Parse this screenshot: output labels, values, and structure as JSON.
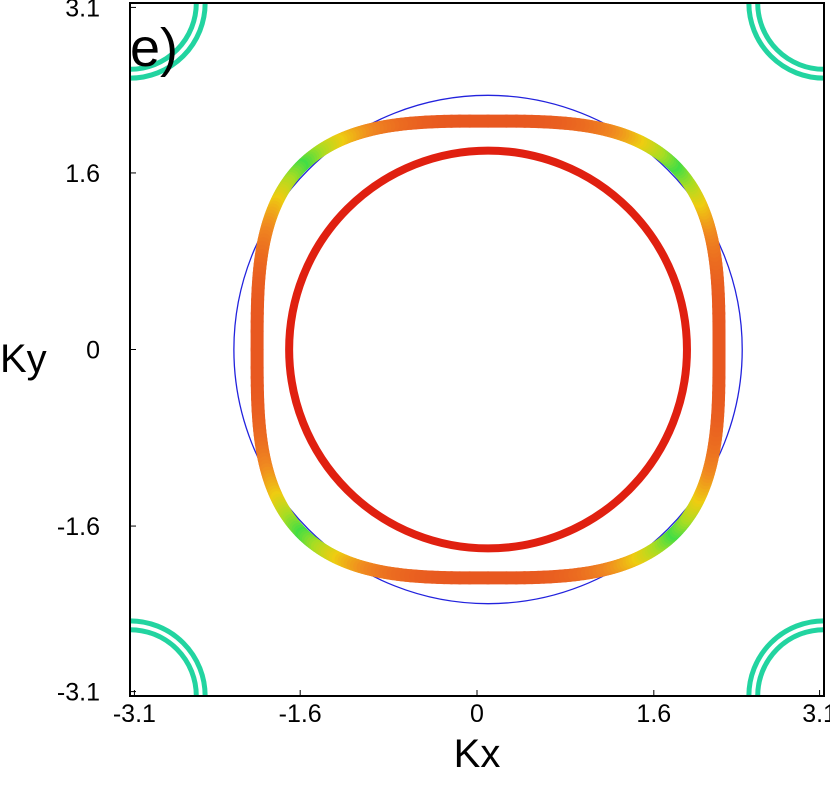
{
  "chart_data": {
    "type": "line",
    "title": "",
    "panel_label": "e)",
    "xlabel": "Kx",
    "ylabel": "Ky",
    "xlim": [
      -3.14,
      3.14
    ],
    "ylim": [
      -3.14,
      3.14
    ],
    "x_ticks": [
      "-3.1",
      "-1.6",
      "0",
      "1.6",
      "3.1"
    ],
    "y_ticks": [
      "3.1",
      "1.6",
      "0",
      "-1.6",
      "-3.1"
    ],
    "x_tick_values": [
      -3.1,
      -1.6,
      0,
      1.6,
      3.1
    ],
    "y_tick_values": [
      3.1,
      1.6,
      0,
      -1.6,
      -3.1
    ],
    "grid": false,
    "colors": {
      "outer_circle": "#2222dd",
      "inner_ring": "#e02010",
      "corner_pockets": "#22d4a0",
      "gradient_stops": [
        "#44dd44",
        "#aadd22",
        "#eecc11",
        "#f08820",
        "#e85820"
      ]
    },
    "series": [
      {
        "shape": "circle",
        "center": [
          0.1,
          0.0
        ],
        "radius": 2.3,
        "color": "#2222dd"
      },
      {
        "shape": "ring",
        "center": [
          0.1,
          0.0
        ],
        "radius": 1.8,
        "color": "#e02010"
      },
      {
        "shape": "superellipse",
        "center": [
          0.1,
          0.0
        ],
        "a": 2.09,
        "b": 2.07,
        "n": 3.2,
        "color": "gradient"
      },
      {
        "shape": "corner-pocket",
        "centers": [
          [
            -3.14,
            3.14
          ],
          [
            3.14,
            3.14
          ],
          [
            -3.14,
            -3.14
          ],
          [
            3.14,
            -3.14
          ]
        ],
        "radii": [
          0.6,
          0.68
        ],
        "color": "#22d4a0"
      }
    ]
  }
}
